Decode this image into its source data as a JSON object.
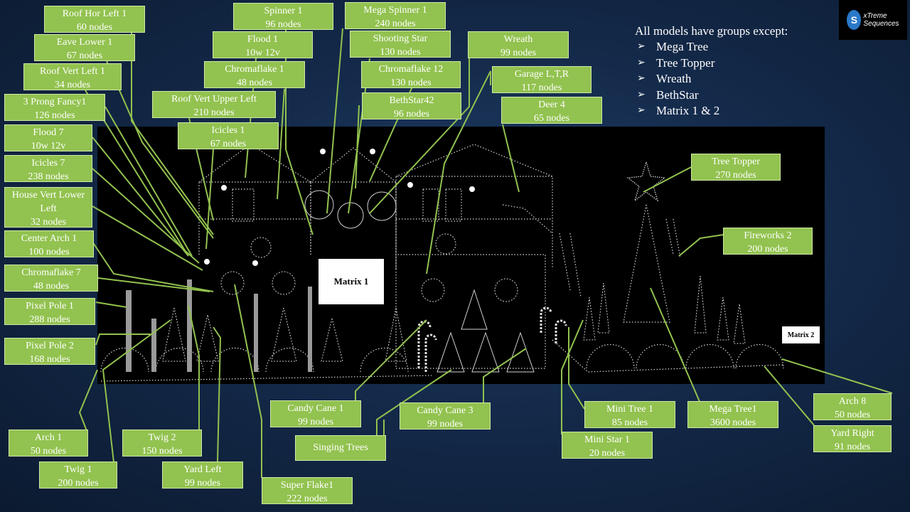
{
  "logo": {
    "mark": "S",
    "line1": "xTreme",
    "line2": "Sequences"
  },
  "note": {
    "title": "All models have groups except:",
    "bullet_glyph": "➢",
    "items": [
      "Mega Tree",
      "Tree Topper",
      "Wreath",
      "BethStar",
      "Matrix 1 & 2"
    ]
  },
  "matrix1": "Matrix 1",
  "matrix2": "Matrix 2",
  "callouts": [
    {
      "name": "Roof Hor Left 1",
      "nodes": "60 nodes"
    },
    {
      "name": "Spinner 1",
      "nodes": "96 nodes"
    },
    {
      "name": "Mega Spinner 1",
      "nodes": "240 nodes"
    },
    {
      "name": "Eave Lower 1",
      "nodes": "67 nodes"
    },
    {
      "name": "Flood 1",
      "nodes": "10w 12v"
    },
    {
      "name": "Shooting Star",
      "nodes": "130 nodes"
    },
    {
      "name": "Wreath",
      "nodes": "99 nodes"
    },
    {
      "name": "Roof Vert Left 1",
      "nodes": "34 nodes"
    },
    {
      "name": "Chromaflake 1",
      "nodes": "48 nodes"
    },
    {
      "name": "Chromaflake 12",
      "nodes": "130 nodes"
    },
    {
      "name": "Garage L,T,R",
      "nodes": "117 nodes"
    },
    {
      "name": "3 Prong Fancy1",
      "nodes": "126 nodes"
    },
    {
      "name": "Roof Vert Upper Left",
      "nodes": "210 nodes"
    },
    {
      "name": "BethStar42",
      "nodes": "96 nodes"
    },
    {
      "name": "Deer 4",
      "nodes": "65 nodes"
    },
    {
      "name": "Flood 7",
      "nodes": "10w 12v"
    },
    {
      "name": "Icicles 1",
      "nodes": "67 nodes"
    },
    {
      "name": "Icicles 7",
      "nodes": "238 nodes"
    },
    {
      "name": "Tree Topper",
      "nodes": "270 nodes"
    },
    {
      "name": "House Vert Lower Left",
      "nodes": "32 nodes"
    },
    {
      "name": "Center Arch 1",
      "nodes": "100 nodes"
    },
    {
      "name": "Fireworks 2",
      "nodes": "200 nodes"
    },
    {
      "name": "Chromaflake 7",
      "nodes": "48 nodes"
    },
    {
      "name": "Pixel Pole 1",
      "nodes": "288 nodes"
    },
    {
      "name": "Pixel Pole 2",
      "nodes": "168 nodes"
    },
    {
      "name": "Arch 8",
      "nodes": "50 nodes"
    },
    {
      "name": "Candy Cane 1",
      "nodes": "99 nodes"
    },
    {
      "name": "Candy Cane 3",
      "nodes": "99 nodes"
    },
    {
      "name": "Mini Tree 1",
      "nodes": "85 nodes"
    },
    {
      "name": "Mega Tree1",
      "nodes": "3600 nodes"
    },
    {
      "name": "Yard Right",
      "nodes": "91 nodes"
    },
    {
      "name": "Arch 1",
      "nodes": "50 nodes"
    },
    {
      "name": "Twig 2",
      "nodes": "150 nodes"
    },
    {
      "name": "Singing Trees",
      "nodes": ""
    },
    {
      "name": "Mini Star 1",
      "nodes": "20 nodes"
    },
    {
      "name": "Twig 1",
      "nodes": "200 nodes"
    },
    {
      "name": "Yard Left",
      "nodes": "99 nodes"
    },
    {
      "name": "Super Flake1",
      "nodes": "222 nodes"
    }
  ]
}
